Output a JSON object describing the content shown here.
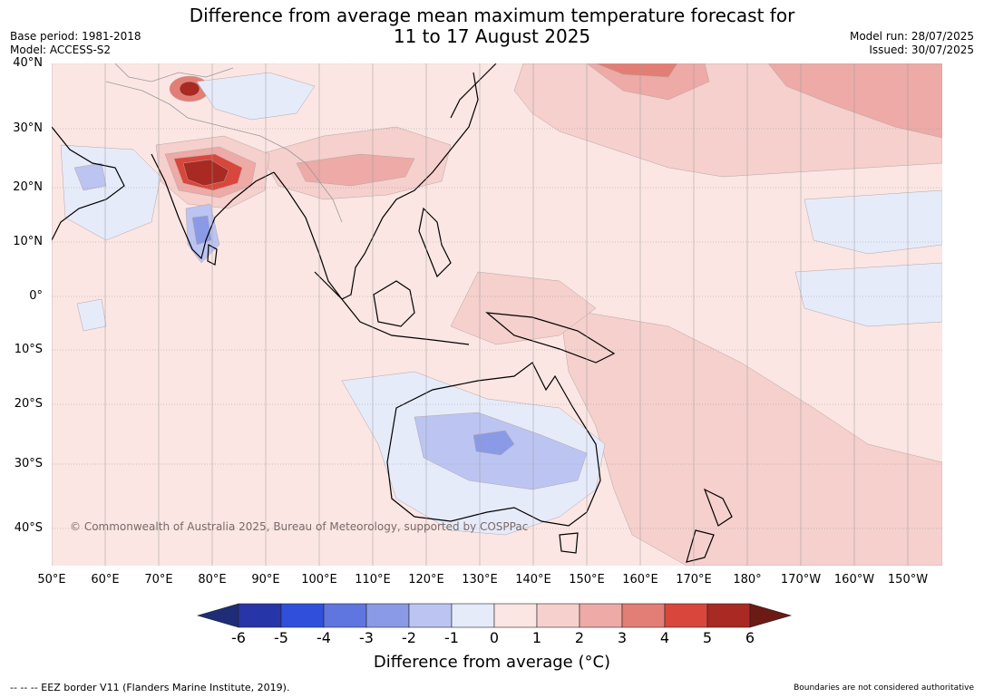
{
  "header": {
    "title_line1": "Difference from average mean maximum temperature forecast for",
    "title_line2": "11 to 17 August 2025",
    "base_period": "Base period: 1981-2018",
    "model": "Model: ACCESS-S2",
    "model_run": "Model run: 28/07/2025",
    "issued": "Issued: 30/07/2025"
  },
  "map": {
    "lat_labels": [
      "40°N",
      "30°N",
      "20°N",
      "10°N",
      "0°",
      "10°S",
      "20°S",
      "30°S",
      "40°S"
    ],
    "lon_labels": [
      "50°E",
      "60°E",
      "70°E",
      "80°E",
      "90°E",
      "100°E",
      "110°E",
      "120°E",
      "130°E",
      "140°E",
      "150°E",
      "160°E",
      "170°E",
      "180°",
      "170°W",
      "160°W",
      "150°W"
    ],
    "copyright": "© Commonwealth of Australia 2025, Bureau of Meteorology, supported by COSPPac",
    "background_color": "#fbe6e3"
  },
  "colorbar": {
    "ticks": [
      "-6",
      "-5",
      "-4",
      "-3",
      "-2",
      "-1",
      "0",
      "1",
      "2",
      "3",
      "4",
      "5",
      "6"
    ],
    "colors": [
      "#1f2c78",
      "#2636a8",
      "#3050dc",
      "#5f76e0",
      "#8a9ae6",
      "#bcc4f2",
      "#e6ebfa",
      "#fbe6e3",
      "#f5d0cc",
      "#edaaa6",
      "#e37e76",
      "#d9463c",
      "#a82a22",
      "#6b1a14"
    ],
    "title": "Difference from average (°C)"
  },
  "footer": {
    "eez_note": "--  --  -- EEZ border V11 (Flanders Marine Institute, 2019).",
    "boundaries_note": "Boundaries are not considered authoritative"
  }
}
